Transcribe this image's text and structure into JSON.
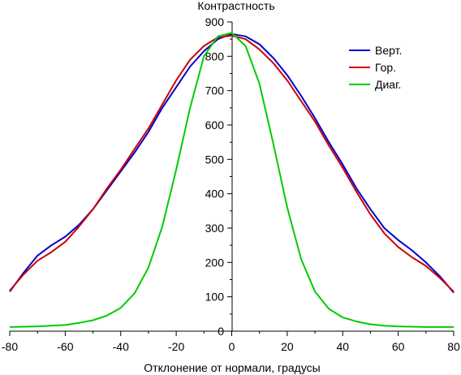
{
  "chart_data": {
    "type": "line",
    "title": "",
    "xlabel": "Отклонение от нормали, градусы",
    "ylabel": "Контрастность",
    "xlim": [
      -80,
      80
    ],
    "ylim": [
      0,
      900
    ],
    "x_ticks": [
      -80,
      -60,
      -40,
      -20,
      0,
      20,
      40,
      60,
      80
    ],
    "y_ticks": [
      0,
      100,
      200,
      300,
      400,
      500,
      600,
      700,
      800,
      900
    ],
    "grid": false,
    "legend_position": "top-right",
    "series": [
      {
        "name": "Верт.",
        "color": "#0000cc",
        "x": [
          -80,
          -75,
          -70,
          -65,
          -60,
          -55,
          -50,
          -45,
          -40,
          -35,
          -30,
          -25,
          -20,
          -15,
          -10,
          -5,
          0,
          5,
          10,
          15,
          20,
          25,
          30,
          35,
          40,
          45,
          50,
          55,
          60,
          65,
          70,
          75,
          80
        ],
        "y": [
          115,
          170,
          220,
          250,
          275,
          310,
          355,
          410,
          465,
          520,
          580,
          650,
          710,
          770,
          815,
          850,
          865,
          858,
          835,
          795,
          745,
          685,
          620,
          550,
          485,
          415,
          355,
          300,
          265,
          235,
          200,
          160,
          112
        ]
      },
      {
        "name": "Гор.",
        "color": "#cc0000",
        "x": [
          -80,
          -75,
          -70,
          -65,
          -60,
          -55,
          -50,
          -45,
          -40,
          -35,
          -30,
          -25,
          -20,
          -15,
          -10,
          -5,
          0,
          5,
          10,
          15,
          20,
          25,
          30,
          35,
          40,
          45,
          50,
          55,
          60,
          65,
          70,
          75,
          80
        ],
        "y": [
          118,
          165,
          205,
          230,
          260,
          305,
          355,
          415,
          470,
          530,
          590,
          660,
          730,
          790,
          830,
          855,
          860,
          850,
          820,
          780,
          730,
          670,
          610,
          540,
          475,
          405,
          340,
          285,
          245,
          215,
          190,
          155,
          115
        ]
      },
      {
        "name": "Диаг.",
        "color": "#00cc00",
        "x": [
          -80,
          -70,
          -60,
          -55,
          -50,
          -45,
          -40,
          -35,
          -30,
          -25,
          -20,
          -15,
          -10,
          -5,
          0,
          5,
          10,
          15,
          20,
          25,
          30,
          35,
          40,
          45,
          50,
          55,
          60,
          70,
          80
        ],
        "y": [
          12,
          14,
          18,
          24,
          32,
          45,
          68,
          110,
          185,
          305,
          470,
          650,
          800,
          858,
          868,
          830,
          720,
          545,
          360,
          210,
          115,
          65,
          40,
          28,
          20,
          16,
          14,
          12,
          12
        ]
      }
    ]
  }
}
